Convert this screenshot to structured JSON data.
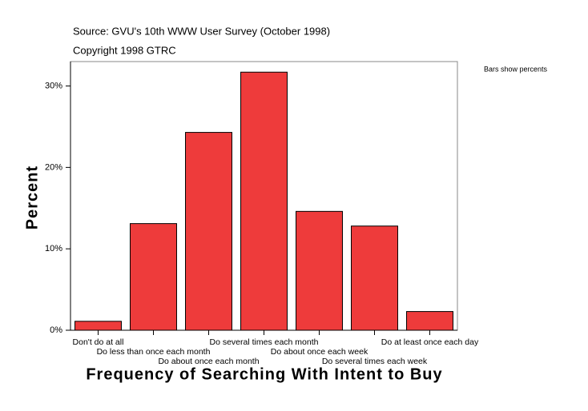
{
  "chart_data": {
    "type": "bar",
    "source": "Source: GVU's 10th WWW User Survey (October 1998)",
    "copyright": "Copyright 1998 GTRC",
    "note": "Bars show percents",
    "x_label": "Frequency of Searching With Intent to Buy",
    "y_label": "Percent",
    "categories": [
      "Don't do at all",
      "Do less than once each month",
      "Do about once each month",
      "Do several times each month",
      "Do about once each week",
      "Do several times each week",
      "Do at least once each day"
    ],
    "values": [
      1.1,
      13.1,
      24.3,
      31.7,
      14.6,
      12.8,
      2.3
    ],
    "color": "#ee3b3b",
    "ylim": [
      0,
      33
    ],
    "yticks": [
      {
        "value": 0,
        "label": "0%"
      },
      {
        "value": 10,
        "label": "10%"
      },
      {
        "value": 20,
        "label": "20%"
      },
      {
        "value": 30,
        "label": "30%"
      }
    ],
    "grid": false
  }
}
